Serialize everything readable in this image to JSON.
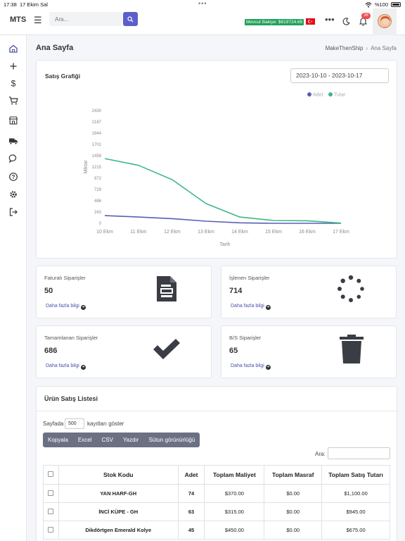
{
  "statusbar": {
    "time": "17:38",
    "date": "17 Ekim Sal",
    "battery": "%100"
  },
  "topnav": {
    "brand": "MTS",
    "search_placeholder": "Ara...",
    "balance": "Mevcut Bakiye: $619724.65",
    "notification_count": "36"
  },
  "page": {
    "title": "Ana Sayfa",
    "breadcrumb": [
      "MakeThenShip",
      "Ana Sayfa"
    ]
  },
  "chart": {
    "title": "Satış Grafiği",
    "date_range": "2023-10-10 - 2023-10-17"
  },
  "chart_data": {
    "type": "line",
    "x": [
      "10 Ekm",
      "11 Ekm",
      "12 Ekm",
      "13 Ekm",
      "14 Ekm",
      "15 Ekm",
      "16 Ekm",
      "17 Ekm"
    ],
    "series": [
      {
        "name": "Adet",
        "color": "#5a5fb5",
        "values": [
          165,
          135,
          100,
          45,
          10,
          0,
          0,
          0
        ]
      },
      {
        "name": "Tutar",
        "color": "#3cb886",
        "values": [
          1395,
          1250,
          940,
          425,
          135,
          60,
          55,
          5
        ]
      }
    ],
    "xlabel": "Tarih",
    "ylabel": "Miktar",
    "yticks": [
      "0",
      "243",
      "486",
      "729",
      "972",
      "1215",
      "1458",
      "1701",
      "1944",
      "2187",
      "2430"
    ],
    "ylim": [
      0,
      2430
    ],
    "legend": "top-right",
    "grid": false
  },
  "stats": [
    {
      "label": "Faturalı Siparişler",
      "value": "50",
      "link": "Daha fazla bilgi",
      "icon": "invoice-icon"
    },
    {
      "label": "İşlenen Siparişler",
      "value": "714",
      "link": "Daha fazla bilgi",
      "icon": "spinner-icon"
    },
    {
      "label": "Tamamlanan Siparişler",
      "value": "686",
      "link": "Daha fazla bilgi",
      "icon": "check-icon"
    },
    {
      "label": "B/S Siparişler",
      "value": "65",
      "link": "Daha fazla bilgi",
      "icon": "trash-icon"
    }
  ],
  "table": {
    "title": "Ürün Satış Listesi",
    "length_prefix": "Sayfada",
    "length_value": "500",
    "length_suffix": "kayıtları göster",
    "buttons": [
      "Kopyala",
      "Excel",
      "CSV",
      "Yazdır",
      "Sütun görünürlüğü"
    ],
    "filter_label": "Ara:",
    "columns": [
      "Stok Kodu",
      "Adet",
      "Toplam Maliyet",
      "Toplam Masraf",
      "Toplam Satış Tutarı"
    ],
    "rows": [
      {
        "sku": "YAN HARF-GH",
        "qty": "74",
        "cost": "$370.00",
        "expense": "$0.00",
        "sales": "$1,100.00"
      },
      {
        "sku": "İNCİ KÜPE - GH",
        "qty": "63",
        "cost": "$315.00",
        "expense": "$0.00",
        "sales": "$945.00"
      },
      {
        "sku": "Dikdörtgen Emerald Kolye",
        "qty": "45",
        "cost": "$450.00",
        "expense": "$0.00",
        "sales": "$675.00"
      }
    ]
  }
}
